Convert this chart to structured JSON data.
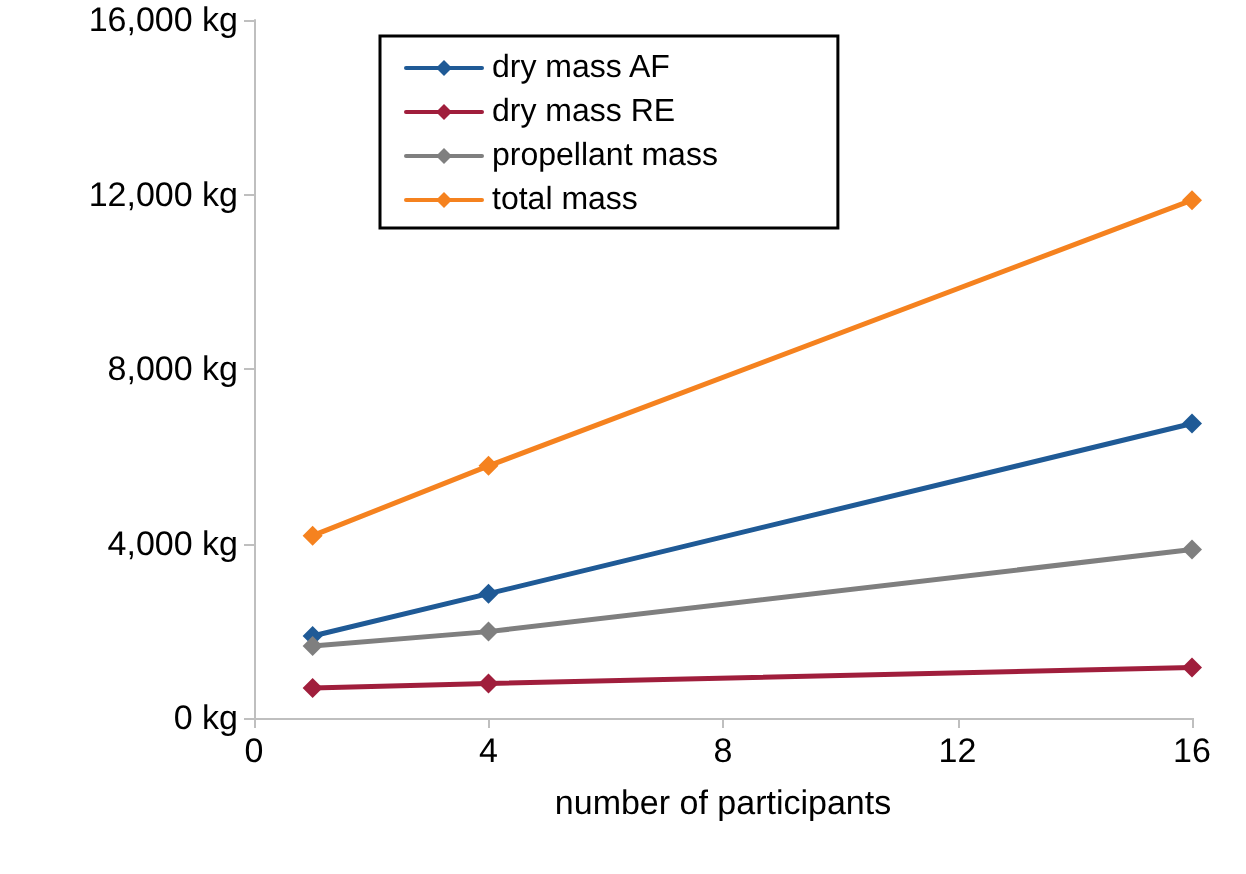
{
  "chart_data": {
    "type": "line",
    "xlabel": "number of participants",
    "x": [
      1,
      4,
      16
    ],
    "series": [
      {
        "name": "dry mass AF",
        "color": "#1f5a96",
        "values": [
          1880,
          2850,
          6750
        ]
      },
      {
        "name": "dry mass RE",
        "color": "#a01e3c",
        "values": [
          690,
          790,
          1160
        ]
      },
      {
        "name": "propellant mass",
        "color": "#7f7f7f",
        "values": [
          1650,
          1980,
          3860
        ]
      },
      {
        "name": "total mass",
        "color": "#f5821f",
        "values": [
          4180,
          5780,
          11870
        ]
      }
    ],
    "xlim": [
      0,
      16
    ],
    "xticks": [
      0,
      4,
      8,
      12,
      16
    ],
    "ylim": [
      0,
      16000
    ],
    "yticks": [
      {
        "value": 0,
        "label": "0 kg"
      },
      {
        "value": 4000,
        "label": "4,000 kg"
      },
      {
        "value": 8000,
        "label": "8,000 kg"
      },
      {
        "value": 12000,
        "label": "12,000 kg"
      },
      {
        "value": 16000,
        "label": "16,000 kg"
      }
    ],
    "grid": false,
    "legend": "top left",
    "marker": "diamond",
    "line_style": "solid"
  }
}
